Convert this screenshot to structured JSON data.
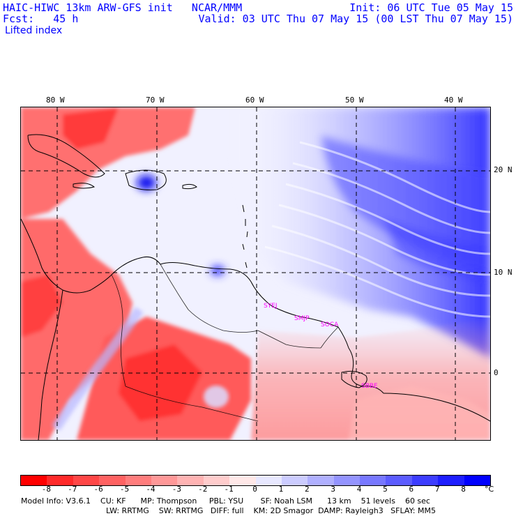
{
  "header": {
    "title": "HAIC-HIWC 13km ARW-GFS init   NCAR/MMM",
    "fcst": "Fcst:   45 h",
    "init": "Init: 06 UTC Tue 05 May 15",
    "valid": "Valid: 03 UTC Thu 07 May 15 (00 LST Thu 07 May 15)",
    "field": "Lifted index"
  },
  "map": {
    "lon_labels": [
      "80 W",
      "70 W",
      "60 W",
      "50 W",
      "40 W"
    ],
    "lat_labels": [
      "20 N",
      "10 N",
      "0"
    ],
    "stations": [
      "SYEJ",
      "SMJP",
      "SOCA",
      "SBBE"
    ]
  },
  "colorbar": {
    "labels": [
      "-8",
      "-7",
      "-6",
      "-5",
      "-4",
      "-3",
      "-2",
      "-1",
      "0",
      "1",
      "2",
      "3",
      "4",
      "5",
      "6",
      "7",
      "8"
    ],
    "unit": "°C",
    "colors": [
      "#ff0000",
      "#ff2a2a",
      "#ff4747",
      "#ff6262",
      "#ff7d7d",
      "#ff9898",
      "#ffb3b3",
      "#ffcccc",
      "#ffe8e8",
      "#e8e8ff",
      "#ccccff",
      "#b0b0ff",
      "#9494ff",
      "#7878ff",
      "#5c5cff",
      "#3d3dff",
      "#1e1eff",
      "#0000ff"
    ]
  },
  "model_info": {
    "line1": "Model Info: V3.6.1    CU: KF      MP: Thompson     PBL: YSU       SF: Noah LSM      13 km    51 levels    60 sec",
    "line2": "LW: RRTMG    SW: RRTMG   DIFF: full    KM: 2D Smagor  DAMP: Rayleigh3   SFLAY: MM5"
  }
}
